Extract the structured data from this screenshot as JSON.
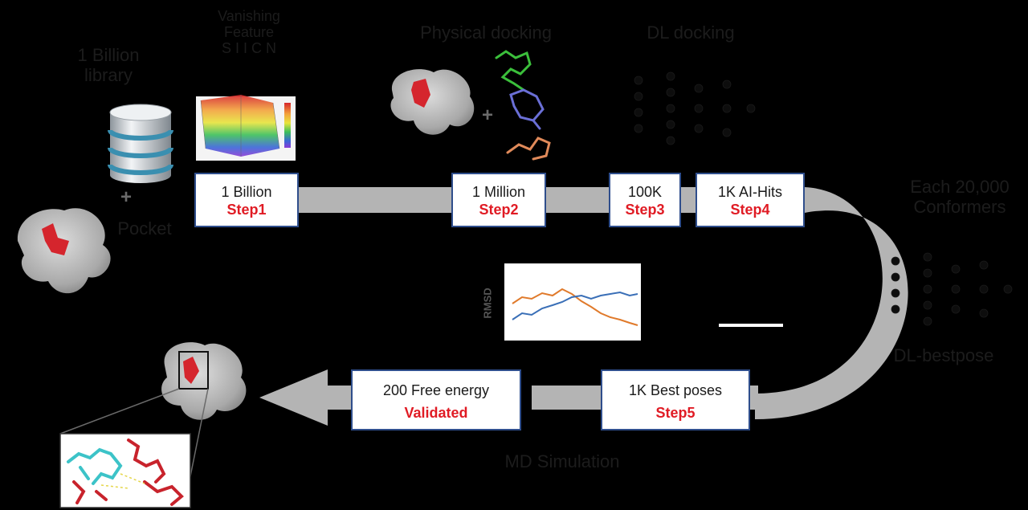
{
  "library_label_line1": "1 Billion",
  "library_label_line2": "library",
  "pocket_label": "Pocket",
  "plus_sign": "+",
  "features_label_line1": "Vanishing",
  "features_label_line2": "Feature",
  "features_label_line3": "S I I C N",
  "physical_docking_label": "Physical docking",
  "dl_docking_label": "DL docking",
  "conformers_label_line1": "Each 20,000",
  "conformers_label_line2": "Conformers",
  "dl_bestpose_label": "DL-bestpose",
  "md_simulation_label": "MD Simulation",
  "rmsd_label": "RMSD",
  "boxes": {
    "step1": {
      "line1": "1 Billion",
      "line2": "Step1"
    },
    "step2": {
      "line1": "1 Million",
      "line2": "Step2"
    },
    "step3": {
      "line1": "100K",
      "line2": "Step3"
    },
    "step4": {
      "line1": "1K AI-Hits",
      "line2": "Step4"
    },
    "step5": {
      "line1": "1K Best poses",
      "line2": "Step5"
    },
    "validated": {
      "line1": "200 Free energy",
      "line2": "Validated"
    }
  },
  "colors": {
    "background": "#000000",
    "arrow": "#b4b4b4",
    "box_border": "#2f4e8c",
    "step_text": "#e01b24",
    "ligand_red": "#c8232c",
    "ligand_cyan": "#3cc3c8",
    "series_blue": "#3a6fb7",
    "series_orange": "#e07a2b"
  },
  "icons": [
    "database-icon",
    "protein-surface-icon",
    "energy-landscape-icon",
    "neural-network-icon",
    "ligand-molecule-icon",
    "rmsd-plot-icon"
  ]
}
